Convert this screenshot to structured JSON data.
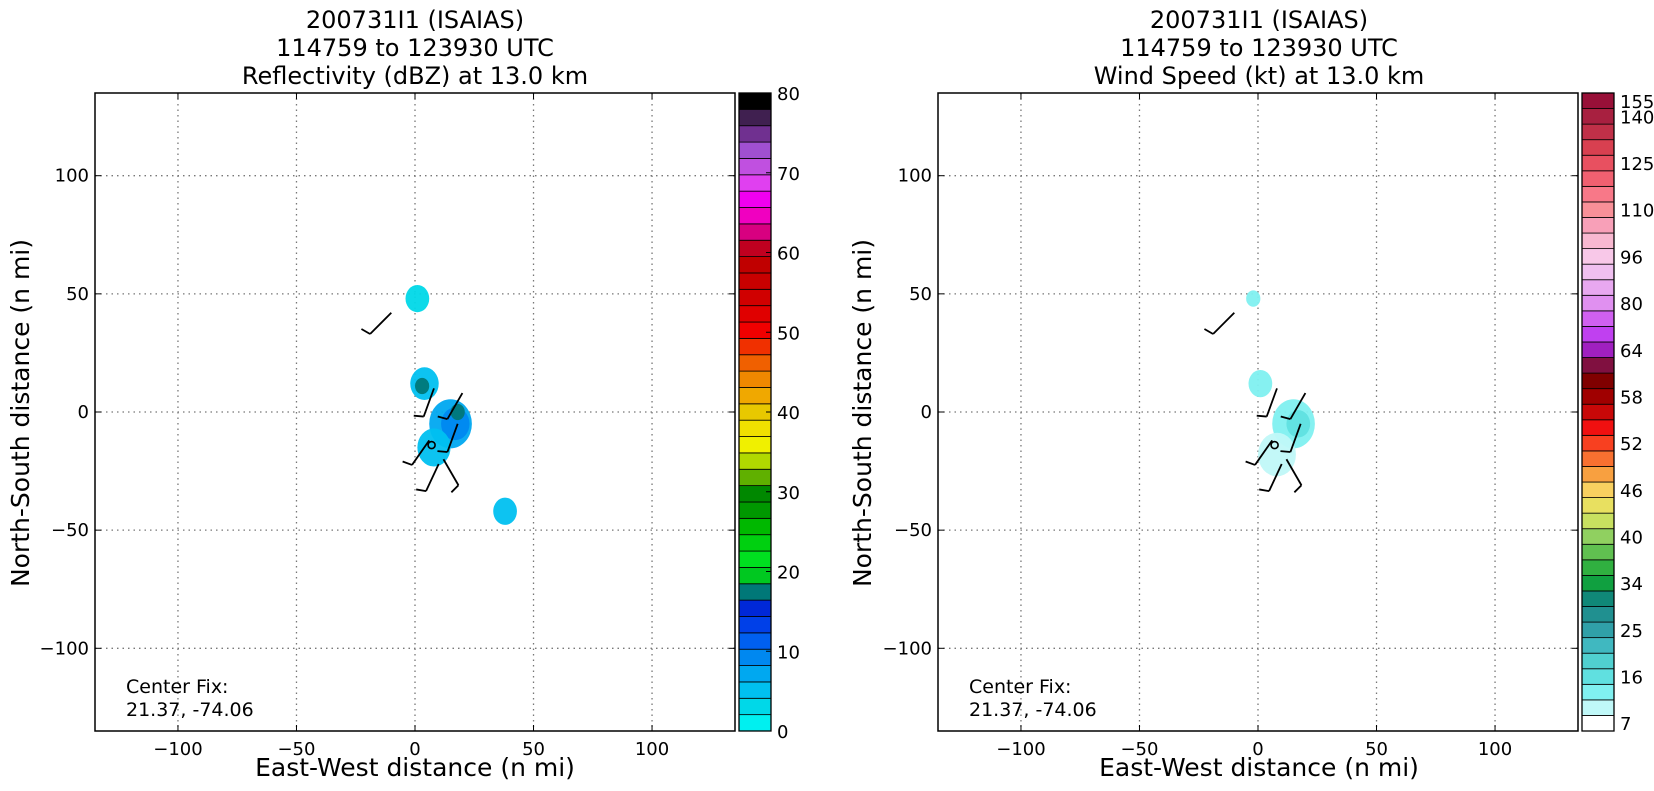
{
  "chart_data": [
    {
      "type": "heatmap",
      "title_lines": [
        "200731I1 (ISAIAS)",
        "114759 to 123930 UTC",
        "Reflectivity (dBZ) at 13.0 km"
      ],
      "xlabel": "East-West distance (n mi)",
      "ylabel": "North-South distance (n mi)",
      "xlim": [
        -135,
        135
      ],
      "ylim": [
        -135,
        135
      ],
      "xticks": [
        -100,
        -50,
        0,
        50,
        100
      ],
      "yticks": [
        -100,
        -50,
        0,
        50,
        100
      ],
      "grid": true,
      "center_fix": {
        "label": "Center Fix:",
        "value": "21.37, -74.06",
        "x": 7,
        "y": -14
      },
      "colorbar": {
        "min": 0,
        "max": 80,
        "step": 2.5,
        "tick_values": [
          0,
          10,
          20,
          30,
          40,
          50,
          60,
          70,
          80
        ],
        "colors": [
          "#00f0f0",
          "#00d8e8",
          "#00c0f0",
          "#00a8f0",
          "#0088f0",
          "#0060f0",
          "#0040e8",
          "#0028d8",
          "#007878",
          "#00c820",
          "#00e020",
          "#00d010",
          "#00b800",
          "#009800",
          "#008800",
          "#60b000",
          "#b0d800",
          "#f0f000",
          "#f0e000",
          "#e8c800",
          "#f0a800",
          "#f08800",
          "#f06000",
          "#f03000",
          "#f00000",
          "#e00000",
          "#d00000",
          "#c80000",
          "#c00000",
          "#c00020",
          "#d80080",
          "#f000c0",
          "#f000f0",
          "#e040f0",
          "#c050e0",
          "#a050d0",
          "#703090",
          "#402050"
        ],
        "top_color": "#000000"
      },
      "echo_regions": [
        {
          "x": 1,
          "y": 48,
          "r": 5,
          "value": 4
        },
        {
          "x": 4,
          "y": 12,
          "r": 6,
          "value": 5
        },
        {
          "x": 3,
          "y": 11,
          "r": 3,
          "value": 22
        },
        {
          "x": 15,
          "y": -5,
          "r": 9,
          "value": 8
        },
        {
          "x": 17,
          "y": -5,
          "r": 6,
          "value": 12
        },
        {
          "x": 18,
          "y": 0,
          "r": 3,
          "value": 22
        },
        {
          "x": 8,
          "y": -15,
          "r": 7,
          "value": 5
        },
        {
          "x": 38,
          "y": -42,
          "r": 5,
          "value": 5
        }
      ],
      "wind_barbs": [
        {
          "x": -10,
          "y": 42,
          "dir": 225
        },
        {
          "x": 8,
          "y": 10,
          "dir": 200
        },
        {
          "x": 20,
          "y": 8,
          "dir": 210
        },
        {
          "x": 18,
          "y": -5,
          "dir": 200
        },
        {
          "x": 6,
          "y": -12,
          "dir": 215
        },
        {
          "x": 12,
          "y": -20,
          "dir": 150
        },
        {
          "x": 10,
          "y": -22,
          "dir": 205
        }
      ]
    },
    {
      "type": "heatmap",
      "title_lines": [
        "200731I1 (ISAIAS)",
        "114759 to 123930 UTC",
        "Wind Speed (kt) at 13.0 km"
      ],
      "xlabel": "East-West distance (n mi)",
      "ylabel": "North-South distance (n mi)",
      "xlim": [
        -135,
        135
      ],
      "ylim": [
        -135,
        135
      ],
      "xticks": [
        -100,
        -50,
        0,
        50,
        100
      ],
      "yticks": [
        -100,
        -50,
        0,
        50,
        100
      ],
      "grid": true,
      "center_fix": {
        "label": "Center Fix:",
        "value": "21.37, -74.06",
        "x": 7,
        "y": -14
      },
      "colorbar": {
        "labels": [
          "7",
          "16",
          "25",
          "34",
          "40",
          "46",
          "52",
          "58",
          "64",
          "80",
          "96",
          "110",
          "125",
          "140",
          "155"
        ],
        "colors": [
          "#ffffff",
          "#c0f8f8",
          "#80f0f0",
          "#60e0e0",
          "#50d0d0",
          "#40b8c0",
          "#30a0a8",
          "#209090",
          "#108878",
          "#10a040",
          "#30b040",
          "#60c050",
          "#90d060",
          "#c8e060",
          "#e8e060",
          "#f8d060",
          "#f8a040",
          "#f87030",
          "#f84020",
          "#f01010",
          "#c80808",
          "#a00000",
          "#800000",
          "#801040",
          "#a020c0",
          "#c040f0",
          "#d060f0",
          "#e090f0",
          "#e8a8f0",
          "#f0c0f0",
          "#f8c8e8",
          "#f8b8d0",
          "#f8a0b8",
          "#f89098",
          "#f87888",
          "#f06070",
          "#e85060",
          "#d84050",
          "#c03048",
          "#a82040",
          "#981038"
        ]
      },
      "echo_regions": [
        {
          "x": -2,
          "y": 48,
          "r": 3,
          "value": 16
        },
        {
          "x": 1,
          "y": 12,
          "r": 5,
          "value": 16
        },
        {
          "x": 15,
          "y": -5,
          "r": 9,
          "value": 14
        },
        {
          "x": 17,
          "y": -5,
          "r": 5,
          "value": 18
        },
        {
          "x": 8,
          "y": -18,
          "r": 8,
          "value": 12
        }
      ],
      "wind_barbs": [
        {
          "x": -10,
          "y": 42,
          "dir": 225
        },
        {
          "x": 8,
          "y": 10,
          "dir": 200
        },
        {
          "x": 20,
          "y": 8,
          "dir": 210
        },
        {
          "x": 18,
          "y": -5,
          "dir": 200
        },
        {
          "x": 6,
          "y": -12,
          "dir": 215
        },
        {
          "x": 12,
          "y": -20,
          "dir": 150
        },
        {
          "x": 10,
          "y": -22,
          "dir": 205
        }
      ]
    }
  ]
}
